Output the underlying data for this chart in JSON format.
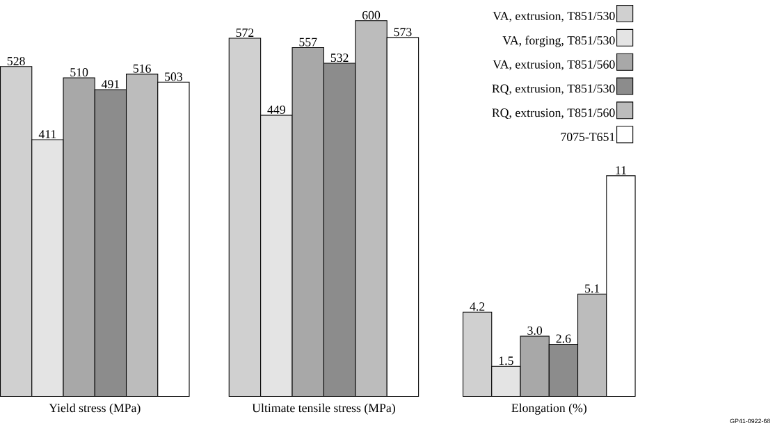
{
  "chart_data": [
    {
      "type": "bar",
      "xlabel": "Yield stress (MPa)",
      "categories": [
        null
      ],
      "series": [
        {
          "color": "#d0d0d0",
          "values": [
            528
          ],
          "value_labels": [
            "528"
          ]
        },
        {
          "color": "#e4e4e4",
          "values": [
            411
          ],
          "value_labels": [
            "411"
          ]
        },
        {
          "color": "#a8a8a8",
          "values": [
            510
          ],
          "value_labels": [
            "510"
          ]
        },
        {
          "color": "#8c8c8c",
          "values": [
            491
          ],
          "value_labels": [
            "491"
          ]
        },
        {
          "color": "#bcbcbc",
          "values": [
            516
          ],
          "value_labels": [
            "516"
          ]
        },
        {
          "color": "#ffffff",
          "values": [
            503
          ],
          "value_labels": [
            "503"
          ]
        }
      ]
    },
    {
      "type": "bar",
      "xlabel": "Ultimate tensile stress (MPa)",
      "categories": [
        null
      ],
      "series": [
        {
          "color": "#d0d0d0",
          "values": [
            572
          ],
          "value_labels": [
            "572"
          ]
        },
        {
          "color": "#e4e4e4",
          "values": [
            449
          ],
          "value_labels": [
            "449"
          ]
        },
        {
          "color": "#a8a8a8",
          "values": [
            557
          ],
          "value_labels": [
            "557"
          ]
        },
        {
          "color": "#8c8c8c",
          "values": [
            532
          ],
          "value_labels": [
            "532"
          ]
        },
        {
          "color": "#bcbcbc",
          "values": [
            600
          ],
          "value_labels": [
            "600"
          ]
        },
        {
          "color": "#ffffff",
          "values": [
            573
          ],
          "value_labels": [
            "573"
          ]
        }
      ]
    },
    {
      "type": "bar",
      "xlabel": "Elongation (%)",
      "categories": [
        null
      ],
      "legend": "top right",
      "annotations": [
        "GP41-0922-68"
      ],
      "series": [
        {
          "name": "VA, extrusion, T851/530",
          "color": "#d0d0d0",
          "values": [
            4.2
          ],
          "value_labels": [
            "4.2"
          ]
        },
        {
          "name": "VA, forging, T851/530",
          "color": "#e4e4e4",
          "values": [
            1.5
          ],
          "value_labels": [
            "1.5"
          ]
        },
        {
          "name": "VA, extrusion, T851/560",
          "color": "#a8a8a8",
          "values": [
            3.0
          ],
          "value_labels": [
            "3.0"
          ]
        },
        {
          "name": "RQ, extrusion, T851/530",
          "color": "#8c8c8c",
          "values": [
            2.6
          ],
          "value_labels": [
            "2.6"
          ]
        },
        {
          "name": "RQ, extrusion, T851/560",
          "color": "#bcbcbc",
          "values": [
            5.1
          ],
          "value_labels": [
            "5.1"
          ]
        },
        {
          "name": "7075-T651",
          "color": "#ffffff",
          "values": [
            11
          ],
          "value_labels": [
            "11"
          ]
        }
      ]
    }
  ]
}
